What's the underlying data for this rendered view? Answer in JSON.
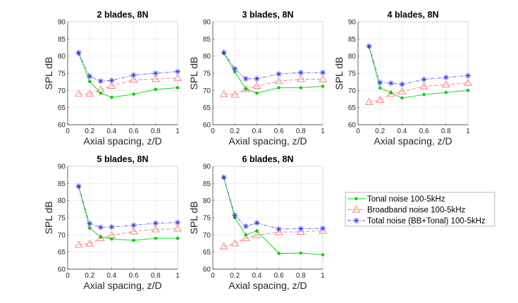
{
  "chart_data": [
    {
      "type": "line",
      "title": "2 blades, 8N",
      "xlabel": "Axial spacing, z/D",
      "ylabel": "SPL dB",
      "xlim": [
        0,
        1
      ],
      "ylim": [
        60,
        90
      ],
      "xticks": [
        "0",
        "0.2",
        "0.4",
        "0.6",
        "0.8",
        "1"
      ],
      "yticks": [
        "60",
        "65",
        "70",
        "75",
        "80",
        "85",
        "90"
      ],
      "grid": true,
      "x": [
        0.1,
        0.2,
        0.3,
        0.4,
        0.6,
        0.8,
        1.0
      ],
      "series": [
        {
          "name": "Tonal noise 100-5kHz",
          "values": [
            80.8,
            72.6,
            69.2,
            68.0,
            68.9,
            70.3,
            70.8
          ]
        },
        {
          "name": "Broadband noise 100-5kHz",
          "values": [
            69.0,
            69.0,
            70.2,
            71.3,
            73.1,
            73.3,
            73.6
          ]
        },
        {
          "name": "Total noise (BB+Tonal) 100-5kHz",
          "values": [
            81.0,
            74.1,
            72.7,
            72.9,
            74.5,
            75.0,
            75.5
          ]
        }
      ]
    },
    {
      "type": "line",
      "title": "3 blades, 8N",
      "xlabel": "Axial spacing, z/D",
      "ylabel": "SPL dB",
      "xlim": [
        0,
        1
      ],
      "ylim": [
        60,
        90
      ],
      "xticks": [
        "0",
        "0.2",
        "0.4",
        "0.6",
        "0.8",
        "1"
      ],
      "yticks": [
        "60",
        "65",
        "70",
        "75",
        "80",
        "85",
        "90"
      ],
      "grid": true,
      "x": [
        0.1,
        0.2,
        0.3,
        0.4,
        0.6,
        0.8,
        1.0
      ],
      "series": [
        {
          "name": "Tonal noise 100-5kHz",
          "values": [
            80.8,
            75.4,
            70.4,
            69.2,
            70.8,
            70.8,
            71.2
          ]
        },
        {
          "name": "Broadband noise 100-5kHz",
          "values": [
            68.9,
            68.7,
            70.4,
            71.3,
            72.7,
            73.3,
            73.2
          ]
        },
        {
          "name": "Total noise (BB+Tonal) 100-5kHz",
          "values": [
            81.1,
            76.3,
            73.4,
            73.4,
            74.8,
            75.2,
            75.2
          ]
        }
      ]
    },
    {
      "type": "line",
      "title": "4 blades, 8N",
      "xlabel": "Axial spacing, z/D",
      "ylabel": "SPL dB",
      "xlim": [
        0,
        1
      ],
      "ylim": [
        60,
        90
      ],
      "xticks": [
        "0",
        "0.2",
        "0.4",
        "0.6",
        "0.8",
        "1"
      ],
      "yticks": [
        "60",
        "65",
        "70",
        "75",
        "80",
        "85",
        "90"
      ],
      "grid": true,
      "x": [
        0.1,
        0.2,
        0.3,
        0.4,
        0.6,
        0.8,
        1.0
      ],
      "series": [
        {
          "name": "Tonal noise 100-5kHz",
          "values": [
            82.8,
            70.7,
            69.3,
            67.8,
            68.8,
            69.4,
            70.0
          ]
        },
        {
          "name": "Broadband noise 100-5kHz",
          "values": [
            66.6,
            67.2,
            69.0,
            69.7,
            71.2,
            71.7,
            72.2
          ]
        },
        {
          "name": "Total noise (BB+Tonal) 100-5kHz",
          "values": [
            82.9,
            72.3,
            72.1,
            71.8,
            73.2,
            73.8,
            74.3
          ]
        }
      ]
    },
    {
      "type": "line",
      "title": "5 blades, 8N",
      "xlabel": "Axial spacing, z/D",
      "ylabel": "SPL dB",
      "xlim": [
        0,
        1
      ],
      "ylim": [
        60,
        90
      ],
      "xticks": [
        "0",
        "0.2",
        "0.4",
        "0.6",
        "0.8",
        "1"
      ],
      "yticks": [
        "60",
        "65",
        "70",
        "75",
        "80",
        "85",
        "90"
      ],
      "grid": true,
      "x": [
        0.1,
        0.2,
        0.3,
        0.4,
        0.6,
        0.8,
        1.0
      ],
      "series": [
        {
          "name": "Tonal noise 100-5kHz",
          "values": [
            84.1,
            72.0,
            69.4,
            68.8,
            68.4,
            69.0,
            69.0
          ]
        },
        {
          "name": "Broadband noise 100-5kHz",
          "values": [
            67.1,
            67.4,
            69.0,
            69.9,
            71.0,
            71.6,
            71.8
          ]
        },
        {
          "name": "Total noise (BB+Tonal) 100-5kHz",
          "values": [
            84.2,
            73.3,
            72.2,
            72.3,
            72.8,
            73.4,
            73.6
          ]
        }
      ]
    },
    {
      "type": "line",
      "title": "6 blades, 8N",
      "xlabel": "Axial spacing, z/D",
      "ylabel": "SPL dB",
      "xlim": [
        0,
        1
      ],
      "ylim": [
        60,
        90
      ],
      "xticks": [
        "0",
        "0.2",
        "0.4",
        "0.6",
        "0.8",
        "1"
      ],
      "yticks": [
        "60",
        "65",
        "70",
        "75",
        "80",
        "85",
        "90"
      ],
      "grid": true,
      "x": [
        0.1,
        0.2,
        0.3,
        0.4,
        0.6,
        0.8,
        1.0
      ],
      "series": [
        {
          "name": "Tonal noise 100-5kHz",
          "values": [
            86.7,
            75.0,
            70.0,
            71.2,
            64.6,
            64.7,
            64.2
          ]
        },
        {
          "name": "Broadband noise 100-5kHz",
          "values": [
            66.6,
            67.5,
            69.0,
            69.9,
            70.8,
            70.9,
            71.2
          ]
        },
        {
          "name": "Total noise (BB+Tonal) 100-5kHz",
          "values": [
            86.8,
            75.7,
            72.5,
            73.5,
            71.7,
            71.8,
            71.9
          ]
        }
      ]
    }
  ],
  "legend": {
    "placement": "right-middle",
    "entries": [
      {
        "label": "Tonal noise 100-5kHz",
        "color": "#00dd00",
        "marker": "dot",
        "line": "solid"
      },
      {
        "label": "Broadband noise 100-5kHz",
        "color": "#ff7a7a",
        "marker": "triangle",
        "line": "dashed"
      },
      {
        "label": "Total noise (BB+Tonal) 100-5kHz",
        "color": "#5a5aff",
        "marker": "asterisk",
        "line": "dashdot"
      }
    ]
  },
  "colors": {
    "tonal": "#00dd00",
    "tonal_marker": "#00cc00",
    "broadband": "#ff7a7a",
    "total": "#5a5aff",
    "total_marker": "#3030ff"
  }
}
